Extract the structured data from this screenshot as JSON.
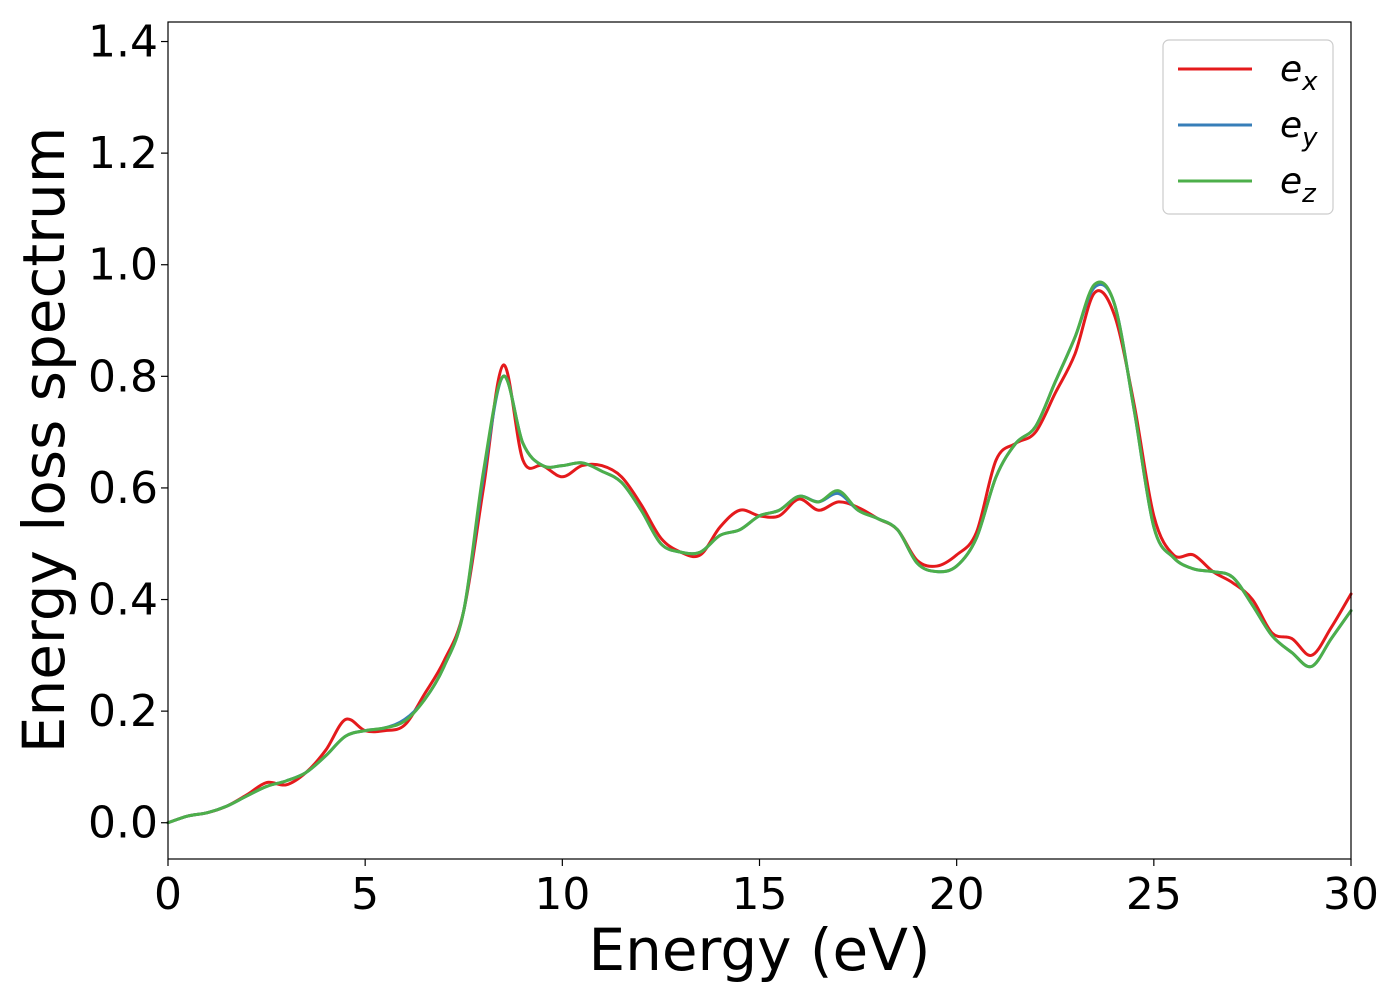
{
  "chart_data": {
    "type": "line",
    "xlabel": "Energy (eV)",
    "ylabel": "Energy loss spectrum",
    "xlim": [
      0,
      30
    ],
    "ylim": [
      -0.065,
      1.435
    ],
    "xticks": [
      0,
      5,
      10,
      15,
      20,
      25,
      30
    ],
    "xtick_labels": [
      "0",
      "5",
      "10",
      "15",
      "20",
      "25",
      "30"
    ],
    "yticks": [
      0.0,
      0.2,
      0.4,
      0.6,
      0.8,
      1.0,
      1.2,
      1.4
    ],
    "ytick_labels": [
      "0.0",
      "0.2",
      "0.4",
      "0.6",
      "0.8",
      "1.0",
      "1.2",
      "1.4"
    ],
    "grid": false,
    "legend_position": "top-right",
    "series": [
      {
        "name": "e_x",
        "label_base": "e",
        "label_sub": "x",
        "color": "#e41a1c",
        "x": [
          0,
          0.5,
          1,
          1.5,
          2,
          2.5,
          3,
          3.5,
          4,
          4.5,
          5,
          5.5,
          6,
          6.5,
          7,
          7.5,
          8,
          8.5,
          9,
          9.5,
          10,
          10.5,
          11,
          11.5,
          12,
          12.5,
          13,
          13.5,
          14,
          14.5,
          15,
          15.5,
          16,
          16.5,
          17,
          17.5,
          18,
          18.5,
          19,
          19.5,
          20,
          20.5,
          21,
          21.5,
          22,
          22.5,
          23,
          23.5,
          24,
          24.5,
          25,
          25.5,
          26,
          26.5,
          27,
          27.5,
          28,
          28.5,
          29,
          29.5,
          30
        ],
        "y": [
          0.0,
          0.012,
          0.018,
          0.03,
          0.05,
          0.072,
          0.068,
          0.09,
          0.13,
          0.185,
          0.165,
          0.165,
          0.175,
          0.23,
          0.29,
          0.38,
          0.6,
          0.82,
          0.65,
          0.64,
          0.62,
          0.64,
          0.64,
          0.62,
          0.57,
          0.51,
          0.485,
          0.48,
          0.53,
          0.56,
          0.55,
          0.55,
          0.58,
          0.56,
          0.575,
          0.565,
          0.545,
          0.525,
          0.47,
          0.46,
          0.48,
          0.52,
          0.65,
          0.68,
          0.7,
          0.77,
          0.84,
          0.95,
          0.91,
          0.75,
          0.55,
          0.48,
          0.48,
          0.45,
          0.43,
          0.4,
          0.34,
          0.33,
          0.3,
          0.35,
          0.41
        ]
      },
      {
        "name": "e_y",
        "label_base": "e",
        "label_sub": "y",
        "color": "#377eb8",
        "x": [
          0,
          0.5,
          1,
          1.5,
          2,
          2.5,
          3,
          3.5,
          4,
          4.5,
          5,
          5.5,
          6,
          6.5,
          7,
          7.5,
          8,
          8.5,
          9,
          9.5,
          10,
          10.5,
          11,
          11.5,
          12,
          12.5,
          13,
          13.5,
          14,
          14.5,
          15,
          15.5,
          16,
          16.5,
          17,
          17.5,
          18,
          18.5,
          19,
          19.5,
          20,
          20.5,
          21,
          21.5,
          22,
          22.5,
          23,
          23.5,
          24,
          24.5,
          25,
          25.5,
          26,
          26.5,
          27,
          27.5,
          28,
          28.5,
          29,
          29.5,
          30
        ],
        "y": [
          0.0,
          0.012,
          0.018,
          0.03,
          0.048,
          0.065,
          0.075,
          0.09,
          0.12,
          0.155,
          0.165,
          0.17,
          0.185,
          0.22,
          0.28,
          0.38,
          0.62,
          0.8,
          0.68,
          0.64,
          0.64,
          0.645,
          0.63,
          0.61,
          0.56,
          0.5,
          0.485,
          0.485,
          0.515,
          0.525,
          0.55,
          0.56,
          0.585,
          0.575,
          0.59,
          0.56,
          0.545,
          0.525,
          0.465,
          0.45,
          0.46,
          0.51,
          0.62,
          0.68,
          0.71,
          0.79,
          0.87,
          0.96,
          0.93,
          0.74,
          0.53,
          0.475,
          0.455,
          0.45,
          0.44,
          0.39,
          0.335,
          0.305,
          0.28,
          0.33,
          0.38
        ]
      },
      {
        "name": "e_z",
        "label_base": "e",
        "label_sub": "z",
        "color": "#4daf4a",
        "x": [
          0,
          0.5,
          1,
          1.5,
          2,
          2.5,
          3,
          3.5,
          4,
          4.5,
          5,
          5.5,
          6,
          6.5,
          7,
          7.5,
          8,
          8.5,
          9,
          9.5,
          10,
          10.5,
          11,
          11.5,
          12,
          12.5,
          13,
          13.5,
          14,
          14.5,
          15,
          15.5,
          16,
          16.5,
          17,
          17.5,
          18,
          18.5,
          19,
          19.5,
          20,
          20.5,
          21,
          21.5,
          22,
          22.5,
          23,
          23.5,
          24,
          24.5,
          25,
          25.5,
          26,
          26.5,
          27,
          27.5,
          28,
          28.5,
          29,
          29.5,
          30
        ],
        "y": [
          0.0,
          0.012,
          0.018,
          0.03,
          0.048,
          0.065,
          0.075,
          0.09,
          0.12,
          0.155,
          0.165,
          0.17,
          0.182,
          0.22,
          0.28,
          0.38,
          0.63,
          0.8,
          0.68,
          0.64,
          0.64,
          0.645,
          0.63,
          0.61,
          0.56,
          0.5,
          0.485,
          0.485,
          0.515,
          0.525,
          0.55,
          0.56,
          0.585,
          0.575,
          0.595,
          0.56,
          0.545,
          0.525,
          0.465,
          0.45,
          0.46,
          0.51,
          0.62,
          0.68,
          0.71,
          0.79,
          0.87,
          0.965,
          0.93,
          0.74,
          0.53,
          0.475,
          0.455,
          0.45,
          0.44,
          0.39,
          0.335,
          0.305,
          0.28,
          0.33,
          0.38
        ]
      }
    ]
  }
}
